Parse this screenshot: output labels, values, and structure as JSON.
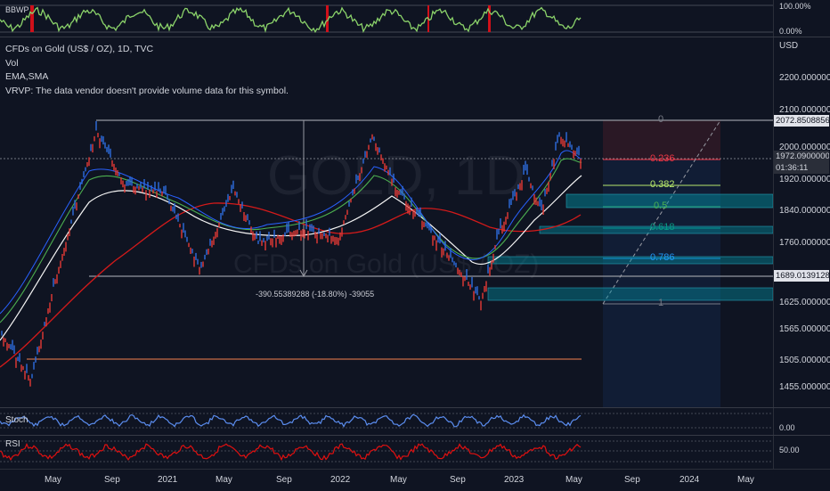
{
  "top_indicator": {
    "name": "BBWP",
    "scale_top": "100.00%",
    "scale_bottom": "0.00%"
  },
  "main": {
    "legend_title": "CFDs on Gold (US$ / OZ), 1D, TVC",
    "legend_vol": "Vol",
    "legend_ma": "EMA,SMA",
    "legend_vrvp": "VRVP: The data vendor doesn't provide volume data for this symbol.",
    "watermark_symbol": "GOLD, 1D",
    "watermark_name": "CFDs on Gold (US$ / OZ)",
    "currency": "USD",
    "price_labels": [
      "2200.00000000",
      "2100.00000000",
      "2000.00000000",
      "1920.00000000",
      "1840.00000000",
      "1760.00000000",
      "1625.00000000",
      "1565.00000000",
      "1505.00000000",
      "1455.00000000"
    ],
    "tag_high": "2072.85088564",
    "tag_last": "1972.09000000",
    "tag_countdown": "01:36:11",
    "tag_low": "1689.01391280",
    "measure_text": "-390.55389288 (-18.80%) -39055",
    "fib_levels": [
      "0",
      "0.236",
      "0.382",
      "0.5",
      "0.618",
      "0.786",
      "1"
    ],
    "colors": {
      "fib_0": "#787b86",
      "fib_0236": "#f23645",
      "fib_0382": "#b7e86b",
      "fib_05": "#4caf50",
      "fib_0618": "#089981",
      "fib_0786": "#2196f3",
      "fib_1": "#787b86"
    }
  },
  "stoch": {
    "name": "Stoch",
    "scale": "0.00"
  },
  "rsi": {
    "name": "RSI",
    "scale": "50.00"
  },
  "time_axis": [
    "May",
    "Sep",
    "2021",
    "May",
    "Sep",
    "2022",
    "May",
    "Sep",
    "2023",
    "May",
    "Sep",
    "2024",
    "May"
  ]
}
